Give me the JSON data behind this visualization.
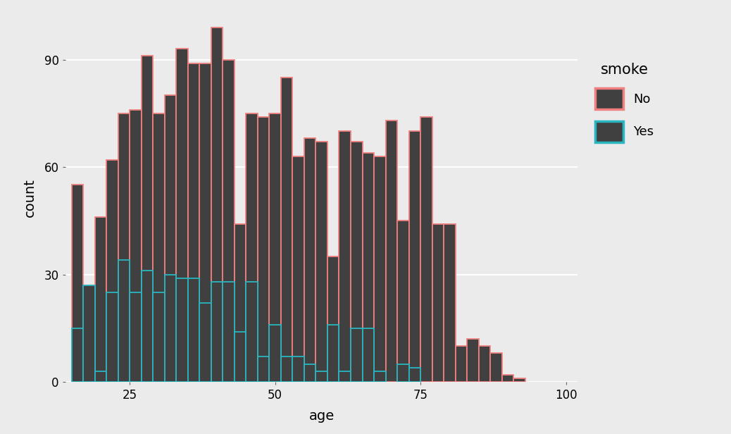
{
  "xlabel": "age",
  "ylabel": "count",
  "background_color": "#EBEBEB",
  "bar_fill": "#404040",
  "no_edge_color": "#F08080",
  "yes_edge_color": "#29B6C0",
  "legend_title": "smoke",
  "legend_no": "No",
  "legend_yes": "Yes",
  "bin_edges": [
    15,
    17,
    19,
    21,
    23,
    25,
    27,
    29,
    31,
    33,
    35,
    37,
    39,
    41,
    43,
    45,
    47,
    49,
    51,
    53,
    55,
    57,
    59,
    61,
    63,
    65,
    67,
    69,
    71,
    73,
    75,
    77,
    79,
    81,
    83,
    85,
    87,
    89,
    91,
    93,
    95,
    97,
    99,
    101
  ],
  "no_counts": [
    55,
    27,
    46,
    62,
    75,
    76,
    91,
    75,
    80,
    93,
    89,
    89,
    99,
    90,
    44,
    75,
    75,
    75,
    85,
    63,
    68,
    67,
    35,
    70,
    67,
    64,
    63,
    75,
    45,
    70,
    75,
    44,
    44,
    10,
    12,
    10,
    8,
    1,
    1,
    0,
    0,
    0,
    0
  ],
  "yes_counts": [
    15,
    27,
    3,
    25,
    34,
    25,
    31,
    25,
    30,
    29,
    29,
    22,
    28,
    28,
    14,
    28,
    7,
    16,
    7,
    7,
    5,
    3,
    16,
    3,
    15,
    15,
    3,
    0,
    5,
    4,
    0,
    0,
    0,
    0,
    0,
    0,
    0,
    0,
    0,
    0,
    0,
    0,
    0
  ],
  "ylim": [
    0,
    103
  ],
  "yticks": [
    0,
    30,
    60,
    90
  ],
  "xticks": [
    25,
    50,
    75,
    100
  ],
  "tick_fontsize": 12,
  "axis_label_fontsize": 14,
  "legend_fontsize": 13,
  "legend_title_fontsize": 15
}
